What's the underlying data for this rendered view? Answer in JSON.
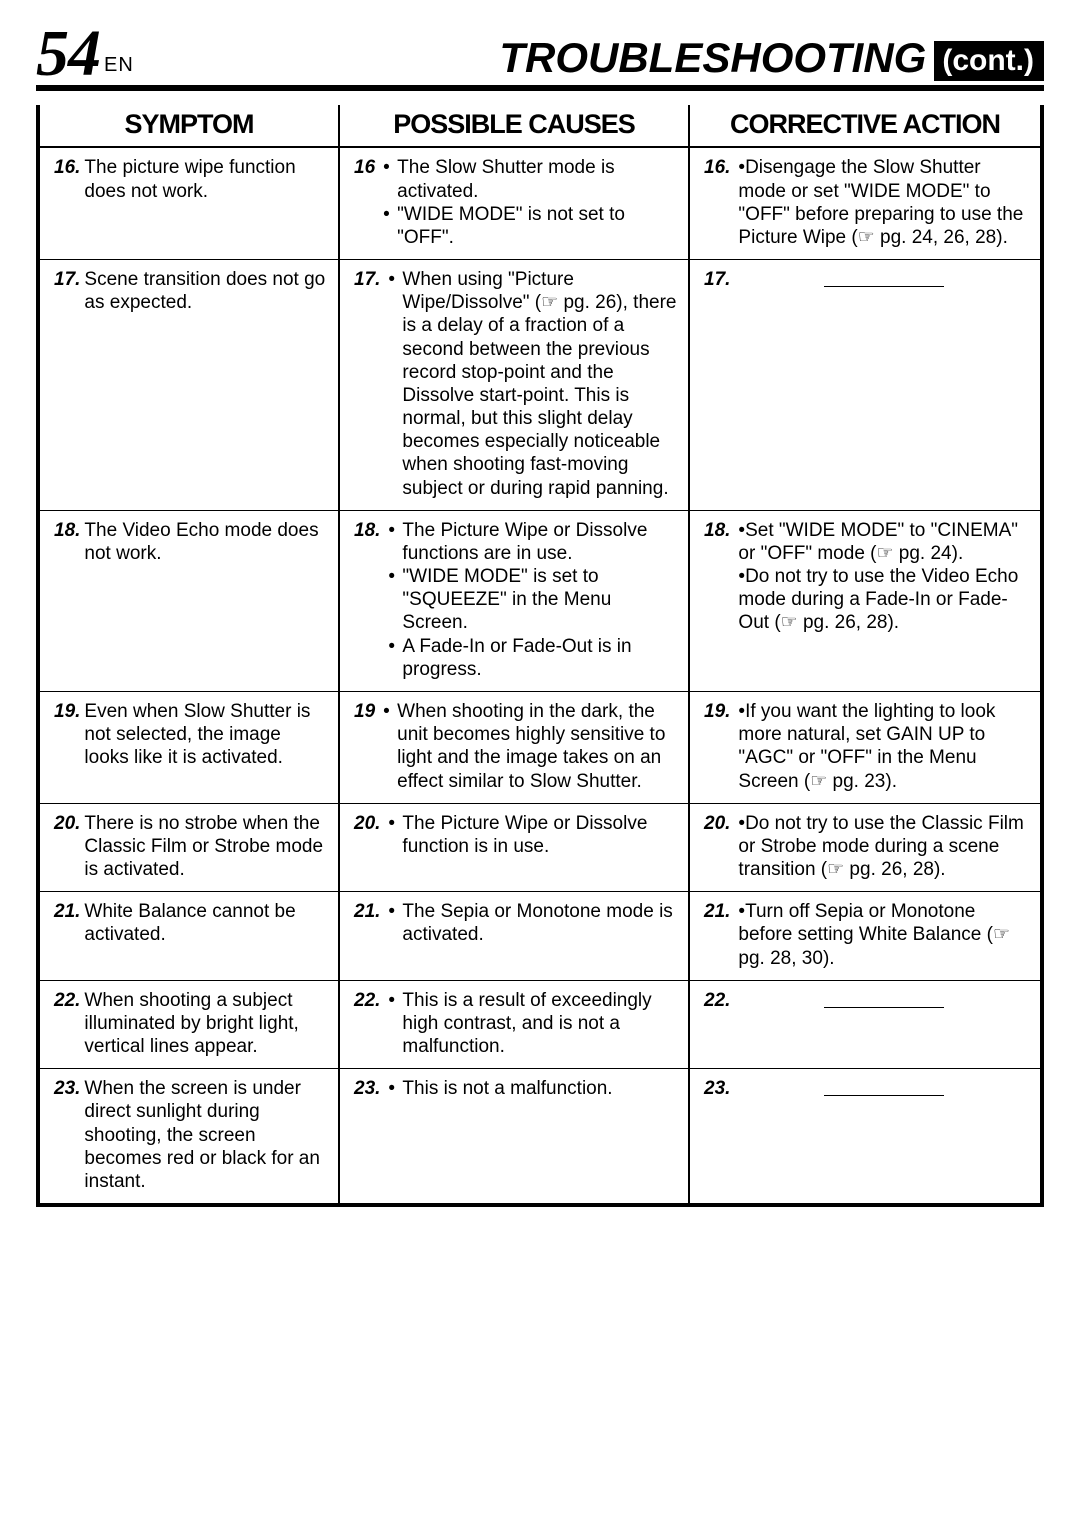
{
  "page_number": "54",
  "page_lang": "EN",
  "title_main": "TROUBLESHOOTING",
  "title_cont": "(cont.)",
  "columns": {
    "c1": "SYMPTOM",
    "c2": "POSSIBLE CAUSES",
    "c3": "CORRECTIVE ACTION"
  },
  "ref_icon": "☞",
  "rows": [
    {
      "n": "16.",
      "symptom": "The picture wipe function does not work.",
      "cause_n": "16",
      "causes": [
        "The Slow Shutter mode is activated.",
        "\"WIDE MODE\" is not set to \"OFF\"."
      ],
      "action_n": "16.",
      "actions": [
        "Disengage the Slow Shutter mode or set \"WIDE MODE\" to \"OFF\" before preparing to use the Picture Wipe (☞ pg. 24, 26, 28)."
      ]
    },
    {
      "n": "17.",
      "symptom": "Scene transition does not go as expected.",
      "cause_n": "17.",
      "causes": [
        "When using \"Picture Wipe/Dissolve\" (☞ pg. 26), there is a delay of a fraction of a second between the previous record stop-point and the Dissolve start-point. This is normal, but this slight delay becomes especially noticeable when shooting fast-moving subject or during rapid panning."
      ],
      "action_n": "17.",
      "actions": [],
      "dash": true
    },
    {
      "n": "18.",
      "symptom": "The Video Echo mode does not work.",
      "cause_n": "18.",
      "causes": [
        "The Picture Wipe or Dissolve functions are in use.",
        "\"WIDE MODE\" is set to \"SQUEEZE\" in the Menu Screen.",
        "A Fade-In or Fade-Out is in progress."
      ],
      "action_n": "18.",
      "actions": [
        "Set \"WIDE MODE\" to \"CINEMA\" or \"OFF\" mode (☞ pg. 24).",
        "Do not try to use the Video Echo mode during a Fade-In or Fade-Out (☞ pg. 26, 28)."
      ]
    },
    {
      "n": "19.",
      "symptom": "Even when Slow Shutter is not selected, the image looks like it is activated.",
      "cause_n": "19",
      "causes": [
        "When shooting in the dark, the unit becomes highly sensitive to light and the image takes on an effect similar to Slow Shutter."
      ],
      "action_n": "19.",
      "actions": [
        "If you want the lighting to look more natural, set GAIN UP to \"AGC\" or \"OFF\" in the Menu Screen (☞ pg. 23)."
      ]
    },
    {
      "n": "20.",
      "symptom": "There is no strobe when the Classic Film or Strobe mode is activated.",
      "cause_n": "20.",
      "causes": [
        "The Picture Wipe or Dissolve function is in use."
      ],
      "action_n": "20.",
      "actions": [
        "Do not try to use the Classic Film or Strobe mode during a scene transition (☞ pg. 26, 28)."
      ]
    },
    {
      "n": "21.",
      "symptom": "White Balance cannot be activated.",
      "cause_n": "21.",
      "causes": [
        "The Sepia or Monotone mode is activated."
      ],
      "action_n": "21.",
      "actions": [
        "Turn off Sepia or Monotone before setting White Balance (☞ pg. 28, 30)."
      ]
    },
    {
      "n": "22.",
      "symptom": "When shooting a subject illuminated by bright light, vertical lines appear.",
      "cause_n": "22.",
      "causes": [
        "This is a result of exceedingly high contrast, and is not a malfunction."
      ],
      "action_n": "22.",
      "actions": [],
      "dash": true
    },
    {
      "n": "23.",
      "symptom": "When the screen is under direct sunlight during shooting, the screen becomes red or black for an instant.",
      "cause_n": "23.",
      "causes": [
        "This is not a malfunction."
      ],
      "action_n": "23.",
      "actions": [],
      "dash": true
    }
  ]
}
